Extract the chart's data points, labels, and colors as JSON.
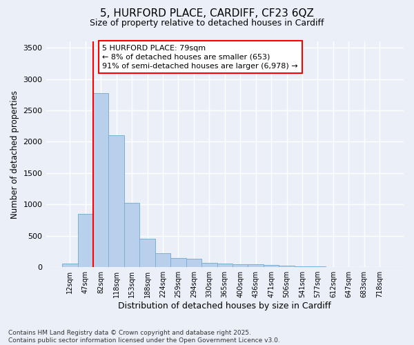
{
  "title_line1": "5, HURFORD PLACE, CARDIFF, CF23 6QZ",
  "title_line2": "Size of property relative to detached houses in Cardiff",
  "xlabel": "Distribution of detached houses by size in Cardiff",
  "ylabel": "Number of detached properties",
  "bar_labels": [
    "12sqm",
    "47sqm",
    "82sqm",
    "118sqm",
    "153sqm",
    "188sqm",
    "224sqm",
    "259sqm",
    "294sqm",
    "330sqm",
    "365sqm",
    "400sqm",
    "436sqm",
    "471sqm",
    "506sqm",
    "541sqm",
    "577sqm",
    "612sqm",
    "647sqm",
    "683sqm",
    "718sqm"
  ],
  "bar_values": [
    55,
    850,
    2770,
    2100,
    1030,
    455,
    220,
    140,
    130,
    65,
    55,
    50,
    45,
    30,
    20,
    15,
    10,
    5,
    3,
    2,
    1
  ],
  "bar_color": "#b8d0eb",
  "bar_edgecolor": "#7aafd4",
  "vline_x": 1.5,
  "vline_color": "red",
  "annotation_text": "5 HURFORD PLACE: 79sqm\n← 8% of detached houses are smaller (653)\n91% of semi-detached houses are larger (6,978) →",
  "annotation_box_color": "white",
  "annotation_box_edgecolor": "red",
  "ylim": [
    0,
    3600
  ],
  "yticks": [
    0,
    500,
    1000,
    1500,
    2000,
    2500,
    3000,
    3500
  ],
  "bg_color": "#eaeff8",
  "grid_color": "white",
  "footer_line1": "Contains HM Land Registry data © Crown copyright and database right 2025.",
  "footer_line2": "Contains public sector information licensed under the Open Government Licence v3.0."
}
